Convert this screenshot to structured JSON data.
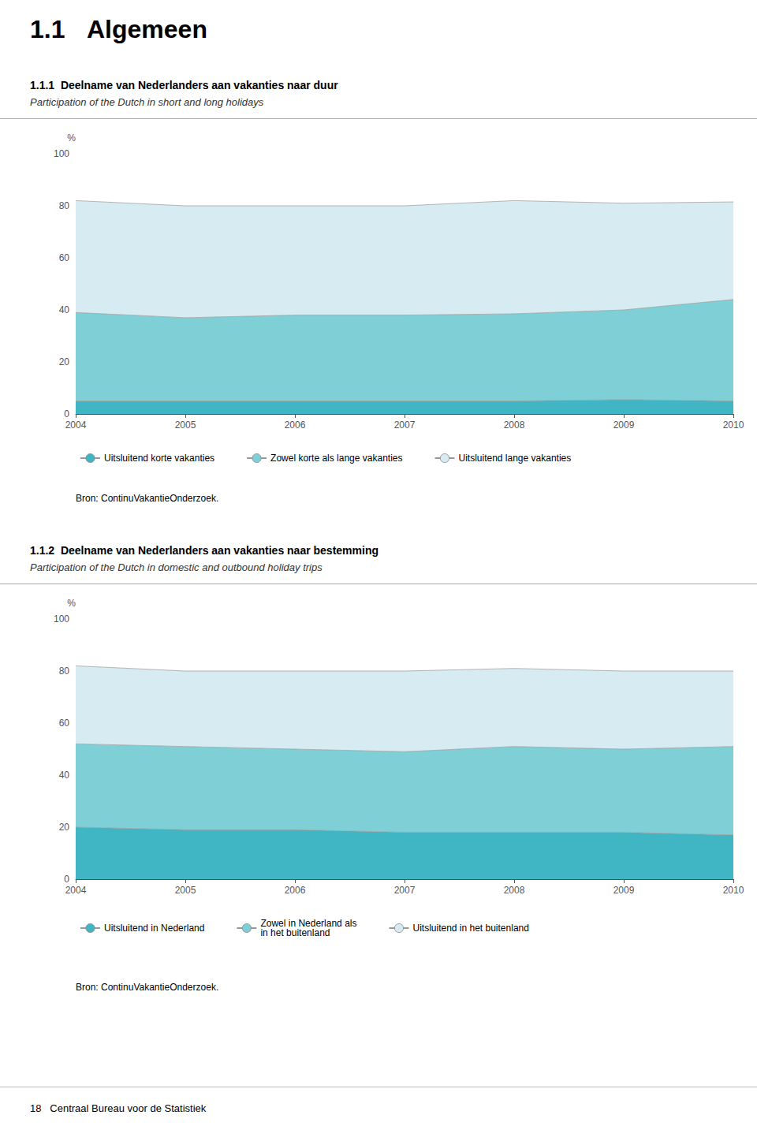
{
  "page_title": [
    "1.1",
    "Algemeen"
  ],
  "footer": "18   Centraal Bureau voor de Statistiek",
  "chart_data": [
    {
      "type": "area",
      "stacked": true,
      "title": "1.1.1  Deelname van Nederlanders aan vakanties naar duur",
      "subtitle": "Participation of the Dutch in short and long holidays",
      "categories": [
        "2004",
        "2005",
        "2006",
        "2007",
        "2008",
        "2009",
        "2010"
      ],
      "series": [
        {
          "name": "Uitsluitend korte vakanties",
          "color": "#40b5c4",
          "values": [
            5.0,
            5.0,
            5.0,
            5.0,
            5.0,
            5.5,
            5.0
          ]
        },
        {
          "name": "Zowel korte als lange vakanties",
          "color": "#7ecfd6",
          "values": [
            34.0,
            32.0,
            33.0,
            33.0,
            33.5,
            34.5,
            39.0
          ]
        },
        {
          "name": "Uitsluitend lange vakanties",
          "color": "#d6ecf2",
          "values": [
            43.0,
            43.0,
            42.0,
            42.0,
            43.5,
            41.0,
            37.5
          ]
        }
      ],
      "y_label": "%",
      "ylim": [
        0,
        100
      ],
      "yticks": [
        0,
        20,
        40,
        60,
        80,
        100
      ],
      "grid": false,
      "legend": "bottom",
      "annotations": [
        "Bron: ContinuVakantieOnderzoek."
      ]
    },
    {
      "type": "area",
      "stacked": true,
      "title": "1.1.2  Deelname van Nederlanders aan vakanties naar bestemming",
      "subtitle": "Participation of the Dutch in domestic and outbound holiday trips",
      "categories": [
        "2004",
        "2005",
        "2006",
        "2007",
        "2008",
        "2009",
        "2010"
      ],
      "series": [
        {
          "name": "Uitsluitend in Nederland",
          "color": "#40b5c4",
          "values": [
            20.0,
            19.0,
            19.0,
            18.0,
            18.0,
            18.0,
            17.0
          ]
        },
        {
          "name": "Zowel in Nederland als\nin het buitenland",
          "color": "#7ecfd6",
          "values": [
            32.0,
            32.0,
            31.0,
            31.0,
            33.0,
            32.0,
            34.0
          ]
        },
        {
          "name": "Uitsluitend in het buitenland",
          "color": "#d6ecf2",
          "values": [
            30.0,
            29.0,
            30.0,
            31.0,
            30.0,
            30.0,
            29.0
          ]
        }
      ],
      "y_label": "%",
      "ylim": [
        0,
        100
      ],
      "yticks": [
        0,
        20,
        40,
        60,
        80,
        100
      ],
      "grid": false,
      "legend": "bottom",
      "annotations": [
        "Bron: ContinuVakantieOnderzoek."
      ]
    }
  ]
}
